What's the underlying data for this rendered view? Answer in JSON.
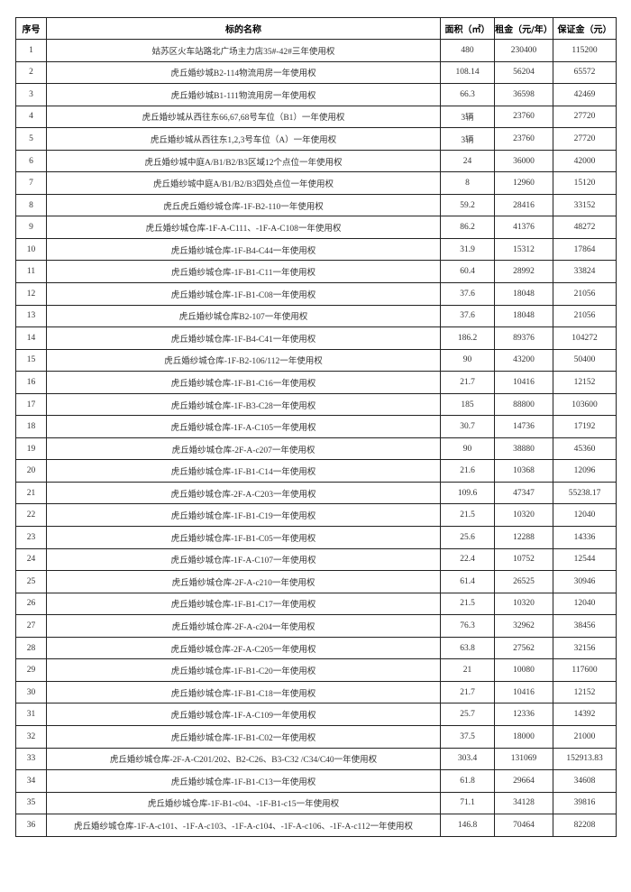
{
  "table": {
    "headers": [
      "序号",
      "标的名称",
      "面积（㎡）",
      "租金（元/年）",
      "保证金（元）"
    ],
    "rows": [
      [
        "1",
        "姑苏区火车站路北广场主力店35#-42#三年使用权",
        "480",
        "230400",
        "115200"
      ],
      [
        "2",
        "虎丘婚纱城B2-114物流用房一年使用权",
        "108.14",
        "56204",
        "65572"
      ],
      [
        "3",
        "虎丘婚纱城B1-111物流用房一年使用权",
        "66.3",
        "36598",
        "42469"
      ],
      [
        "4",
        "虎丘婚纱城从西往东66,67,68号车位（B1）一年使用权",
        "3辆",
        "23760",
        "27720"
      ],
      [
        "5",
        "虎丘婚纱城从西往东1,2,3号车位（A）一年使用权",
        "3辆",
        "23760",
        "27720"
      ],
      [
        "6",
        "虎丘婚纱城中庭A/B1/B2/B3区域12个点位一年使用权",
        "24",
        "36000",
        "42000"
      ],
      [
        "7",
        "虎丘婚纱城中庭A/B1/B2/B3四处点位一年使用权",
        "8",
        "12960",
        "15120"
      ],
      [
        "8",
        "虎丘虎丘婚纱城仓库-1F-B2-110一年使用权",
        "59.2",
        "28416",
        "33152"
      ],
      [
        "9",
        "虎丘婚纱城仓库-1F-A-C111、-1F-A-C108一年使用权",
        "86.2",
        "41376",
        "48272"
      ],
      [
        "10",
        "虎丘婚纱城仓库-1F-B4-C44一年使用权",
        "31.9",
        "15312",
        "17864"
      ],
      [
        "11",
        "虎丘婚纱城仓库-1F-B1-C11一年使用权",
        "60.4",
        "28992",
        "33824"
      ],
      [
        "12",
        "虎丘婚纱城仓库-1F-B1-C08一年使用权",
        "37.6",
        "18048",
        "21056"
      ],
      [
        "13",
        "虎丘婚纱城仓库B2-107一年使用权",
        "37.6",
        "18048",
        "21056"
      ],
      [
        "14",
        "虎丘婚纱城仓库-1F-B4-C41一年使用权",
        "186.2",
        "89376",
        "104272"
      ],
      [
        "15",
        "虎丘婚纱城仓库-1F-B2-106/112一年使用权",
        "90",
        "43200",
        "50400"
      ],
      [
        "16",
        "虎丘婚纱城仓库-1F-B1-C16一年使用权",
        "21.7",
        "10416",
        "12152"
      ],
      [
        "17",
        "虎丘婚纱城仓库-1F-B3-C28一年使用权",
        "185",
        "88800",
        "103600"
      ],
      [
        "18",
        "虎丘婚纱城仓库-1F-A-C105一年使用权",
        "30.7",
        "14736",
        "17192"
      ],
      [
        "19",
        "虎丘婚纱城仓库-2F-A-c207一年使用权",
        "90",
        "38880",
        "45360"
      ],
      [
        "20",
        "虎丘婚纱城仓库-1F-B1-C14一年使用权",
        "21.6",
        "10368",
        "12096"
      ],
      [
        "21",
        "虎丘婚纱城仓库-2F-A-C203一年使用权",
        "109.6",
        "47347",
        "55238.17"
      ],
      [
        "22",
        "虎丘婚纱城仓库-1F-B1-C19一年使用权",
        "21.5",
        "10320",
        "12040"
      ],
      [
        "23",
        "虎丘婚纱城仓库-1F-B1-C05一年使用权",
        "25.6",
        "12288",
        "14336"
      ],
      [
        "24",
        "虎丘婚纱城仓库-1F-A-C107一年使用权",
        "22.4",
        "10752",
        "12544"
      ],
      [
        "25",
        "虎丘婚纱城仓库-2F-A-c210一年使用权",
        "61.4",
        "26525",
        "30946"
      ],
      [
        "26",
        "虎丘婚纱城仓库-1F-B1-C17一年使用权",
        "21.5",
        "10320",
        "12040"
      ],
      [
        "27",
        "虎丘婚纱城仓库-2F-A-c204一年使用权",
        "76.3",
        "32962",
        "38456"
      ],
      [
        "28",
        "虎丘婚纱城仓库-2F-A-C205一年使用权",
        "63.8",
        "27562",
        "32156"
      ],
      [
        "29",
        "虎丘婚纱城仓库-1F-B1-C20一年使用权",
        "21",
        "10080",
        "117600"
      ],
      [
        "30",
        "虎丘婚纱城仓库-1F-B1-C18一年使用权",
        "21.7",
        "10416",
        "12152"
      ],
      [
        "31",
        "虎丘婚纱城仓库-1F-A-C109一年使用权",
        "25.7",
        "12336",
        "14392"
      ],
      [
        "32",
        "虎丘婚纱城仓库-1F-B1-C02一年使用权",
        "37.5",
        "18000",
        "21000"
      ],
      [
        "33",
        "虎丘婚纱城仓库-2F-A-C201/202、B2-C26、B3-C32 /C34/C40一年使用权",
        "303.4",
        "131069",
        "152913.83"
      ],
      [
        "34",
        "虎丘婚纱城仓库-1F-B1-C13一年使用权",
        "61.8",
        "29664",
        "34608"
      ],
      [
        "35",
        "虎丘婚纱城仓库-1F-B1-c04、-1F-B1-c15一年使用权",
        "71.1",
        "34128",
        "39816"
      ],
      [
        "36",
        "虎丘婚纱城仓库-1F-A-c101、-1F-A-c103、-1F-A-c104、-1F-A-c106、-1F-A-c112一年使用权",
        "146.8",
        "70464",
        "82208"
      ]
    ]
  }
}
